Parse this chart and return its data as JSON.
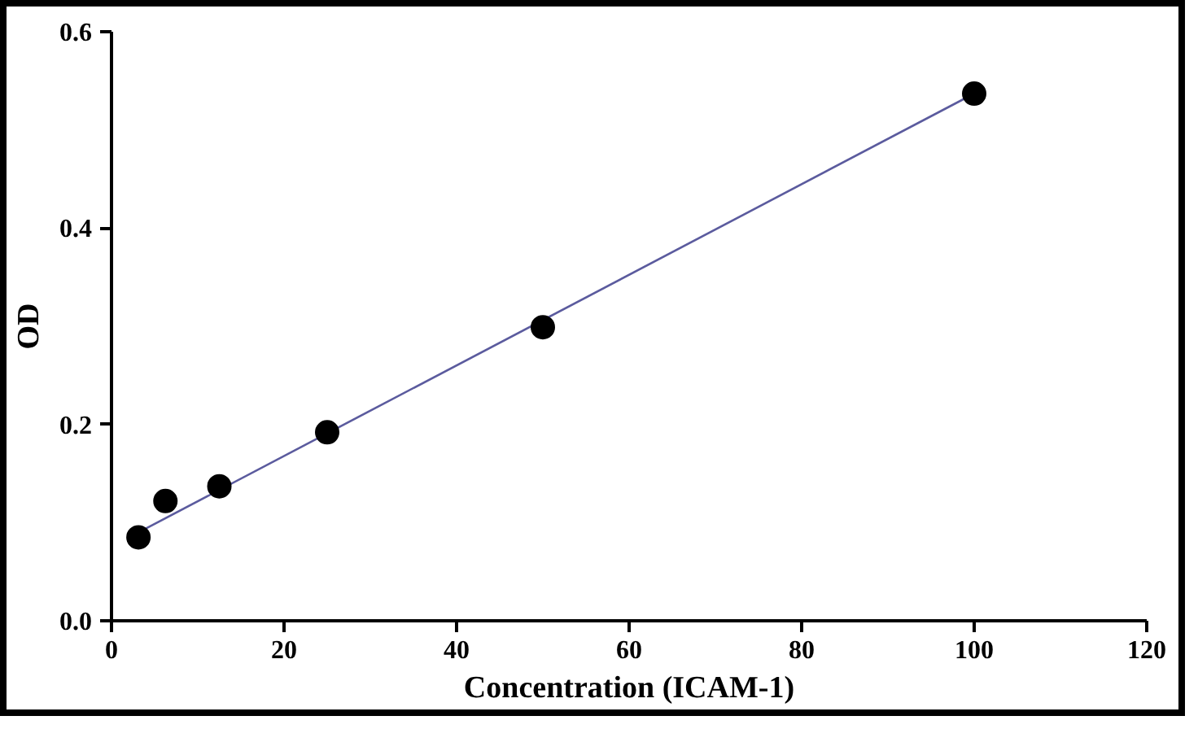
{
  "chart_data": {
    "type": "scatter",
    "xlabel": "Concentration (ICAM-1)",
    "ylabel": "OD",
    "x": [
      3.125,
      6.25,
      12.5,
      25,
      50,
      100
    ],
    "series": [
      {
        "color": "#000000",
        "marker": "circle",
        "values": [
          0.085,
          0.122,
          0.137,
          0.192,
          0.299,
          0.537
        ]
      },
      {
        "type": "line",
        "color": "#5b5b9e",
        "x": [
          3.125,
          100
        ],
        "values": [
          0.09,
          0.537
        ]
      }
    ],
    "xlim": [
      0,
      120
    ],
    "ylim": [
      0,
      0.6
    ],
    "xticks": [
      0,
      20,
      40,
      60,
      80,
      100,
      120
    ],
    "yticks": [
      {
        "value": 0,
        "label": "0.0"
      },
      {
        "value": 0.2,
        "label": "0.2"
      },
      {
        "value": 0.4,
        "label": "0.4"
      },
      {
        "value": 0.6,
        "label": "0.6"
      }
    ],
    "grid": false
  }
}
